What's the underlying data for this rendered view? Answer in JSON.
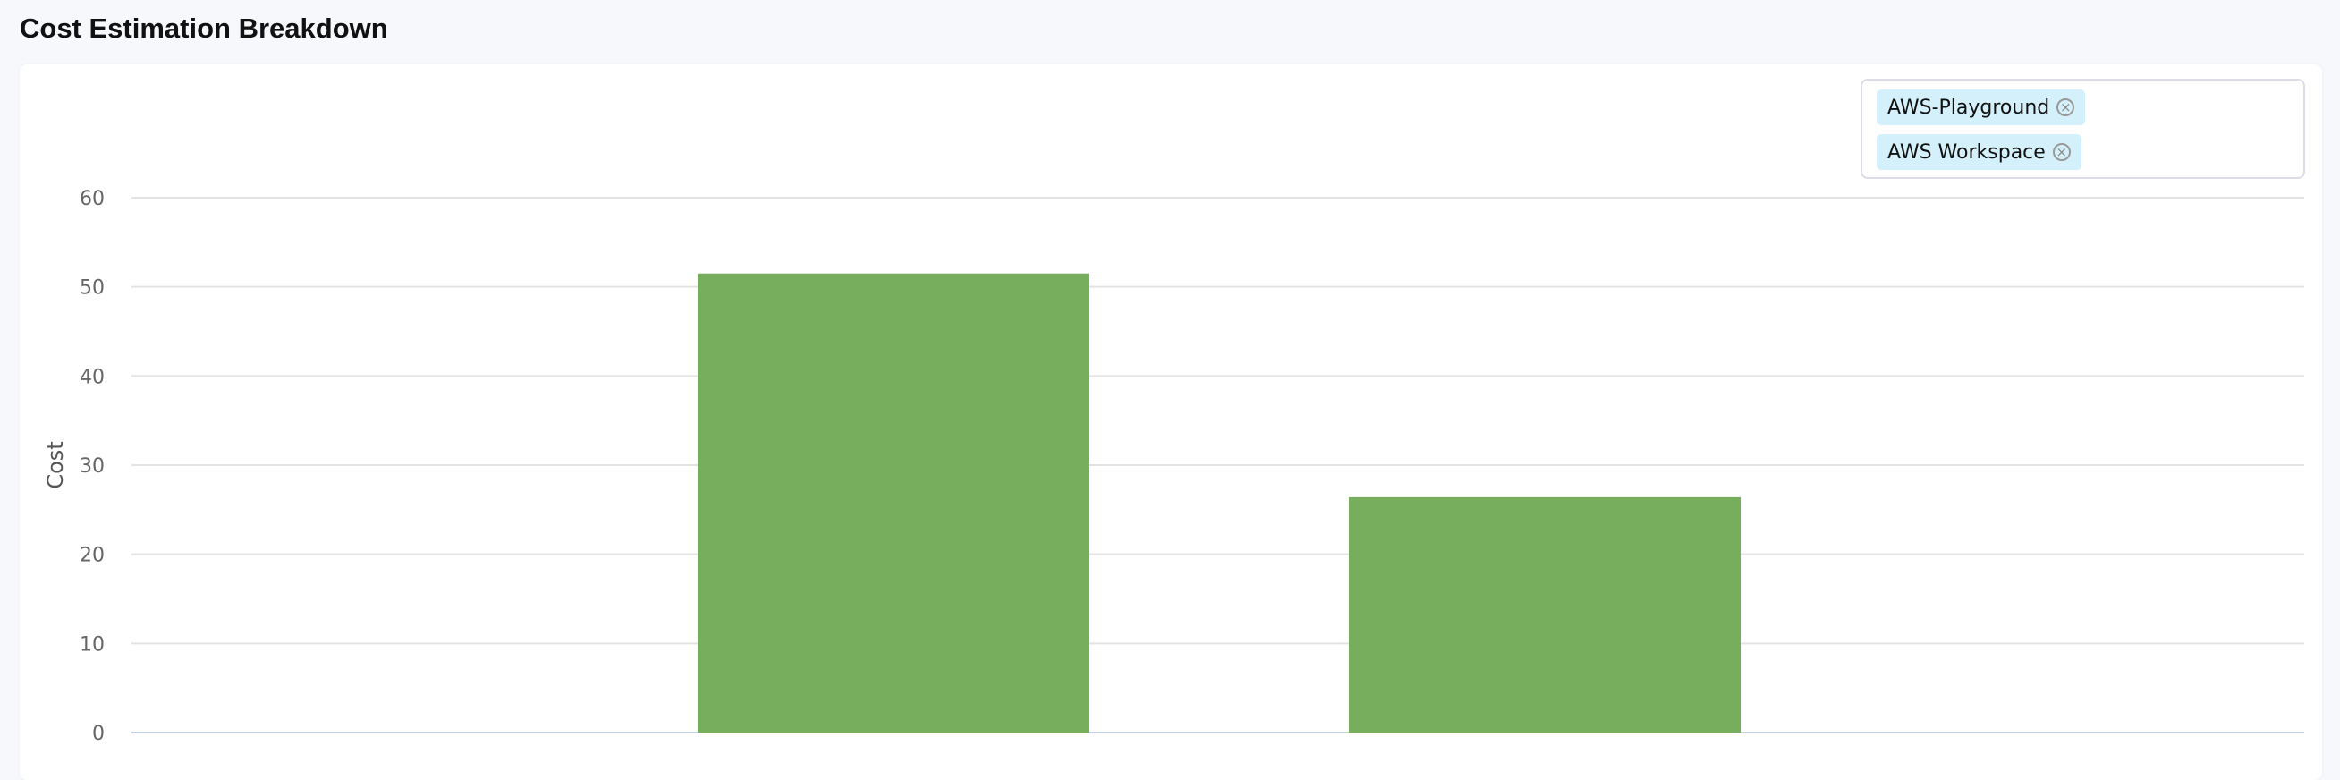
{
  "page": {
    "title": "Cost Estimation Breakdown"
  },
  "filters": {
    "chips": [
      {
        "label": "AWS-Playground",
        "icon": "close-circle-icon"
      },
      {
        "label": "AWS Workspace",
        "icon": "close-circle-icon"
      }
    ]
  },
  "chart_data": {
    "type": "bar",
    "title": "",
    "xlabel": "",
    "ylabel": "Cost",
    "ylim": [
      0,
      60
    ],
    "yticks": [
      "0",
      "10",
      "20",
      "30",
      "40",
      "50",
      "60"
    ],
    "values": [
      51.5,
      26.4
    ],
    "grid": true,
    "bar_color": "#77ae5d"
  }
}
